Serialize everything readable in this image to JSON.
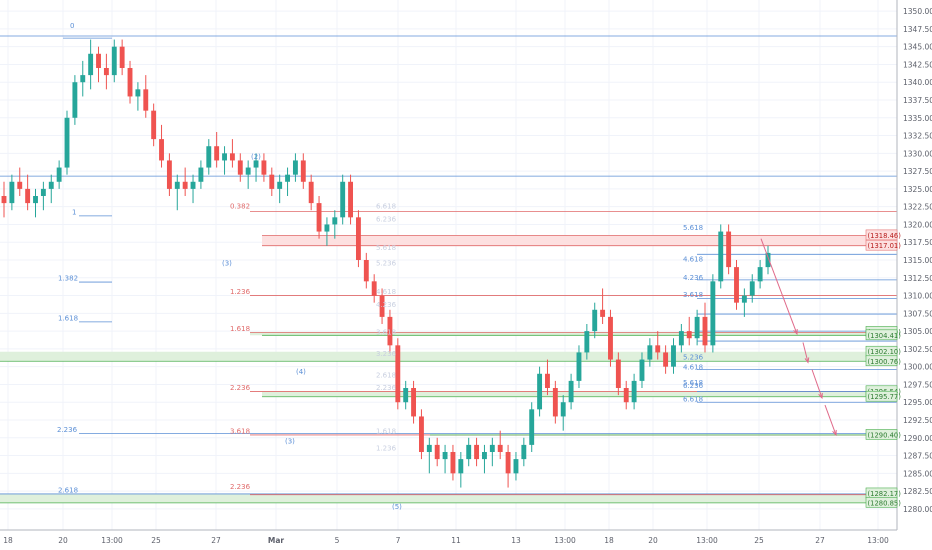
{
  "chart_data": {
    "type": "candlestick",
    "colors": {
      "up": "#26a69a",
      "down": "#ef5350",
      "fib_blue": "#5b8fd6",
      "fib_red": "#e06a6a",
      "fib_faint": "#c8cfe0",
      "support_green": "#4caf50",
      "resistance_red": "#e57373",
      "zone_green": "#dff0dc",
      "zone_red": "#fde0e0",
      "arrow": "#e06a8a",
      "grid": "#f0f3fa",
      "axis_text": "#5d606b"
    },
    "ylim": [
      1279,
      1351
    ],
    "y_ticks": [
      "1280.00",
      "1282.50",
      "1285.00",
      "1287.50",
      "1290.00",
      "1292.50",
      "1295.00",
      "1297.50",
      "1300.00",
      "1302.50",
      "1305.00",
      "1307.50",
      "1310.00",
      "1312.50",
      "1315.00",
      "1317.50",
      "1320.00",
      "1322.50",
      "1325.00",
      "1327.50",
      "1330.00",
      "1332.50",
      "1335.00",
      "1337.50",
      "1340.00",
      "1342.50",
      "1345.00",
      "1347.50",
      "1350.00"
    ],
    "x_ticks": [
      "18",
      "20",
      "13:00",
      "25",
      "27",
      "Mar",
      "5",
      "7",
      "11",
      "13",
      "13:00",
      "18",
      "20",
      "13:00",
      "25",
      "27",
      "13:00"
    ],
    "price_boxes": [
      {
        "label": "1318.46",
        "price": 1318.46,
        "kind": "red"
      },
      {
        "label": "1317.01",
        "price": 1317.01,
        "kind": "red"
      },
      {
        "label": "1304.89",
        "price": 1304.89,
        "kind": "green"
      },
      {
        "label": "1304.41",
        "price": 1304.41,
        "kind": "green"
      },
      {
        "label": "1302.10",
        "price": 1302.1,
        "kind": "green"
      },
      {
        "label": "1300.76",
        "price": 1300.76,
        "kind": "green"
      },
      {
        "label": "1296.54",
        "price": 1296.54,
        "kind": "green"
      },
      {
        "label": "1295.77",
        "price": 1295.77,
        "kind": "green"
      },
      {
        "label": "1290.40",
        "price": 1290.4,
        "kind": "green"
      },
      {
        "label": "1282.17",
        "price": 1282.17,
        "kind": "green"
      },
      {
        "label": "1280.85",
        "price": 1280.85,
        "kind": "green"
      }
    ],
    "fib_labels": [
      {
        "text": "0",
        "kind": "blue"
      },
      {
        "text": "1",
        "kind": "blue"
      },
      {
        "text": "1.382",
        "kind": "blue"
      },
      {
        "text": "1.618",
        "kind": "blue"
      },
      {
        "text": "2.236",
        "kind": "blue"
      },
      {
        "text": "2.618",
        "kind": "blue"
      },
      {
        "text": "0.382",
        "kind": "red"
      },
      {
        "text": "1.236",
        "kind": "red"
      },
      {
        "text": "1.618",
        "kind": "red"
      },
      {
        "text": "2.236",
        "kind": "red"
      },
      {
        "text": "3.618",
        "kind": "red"
      },
      {
        "text": "2.236",
        "kind": "red"
      },
      {
        "text": "6.618",
        "kind": "faint"
      },
      {
        "text": "6.236",
        "kind": "faint"
      },
      {
        "text": "5.618",
        "kind": "faint"
      },
      {
        "text": "5.236",
        "kind": "faint"
      },
      {
        "text": "4.618",
        "kind": "faint"
      },
      {
        "text": "4.236",
        "kind": "faint"
      },
      {
        "text": "3.618",
        "kind": "faint"
      },
      {
        "text": "3.236",
        "kind": "faint"
      },
      {
        "text": "2.618",
        "kind": "faint"
      },
      {
        "text": "2.236",
        "kind": "faint"
      },
      {
        "text": "1.618",
        "kind": "faint"
      },
      {
        "text": "1.236",
        "kind": "faint"
      },
      {
        "text": "5.618",
        "kind": "blue"
      },
      {
        "text": "4.618",
        "kind": "blue"
      },
      {
        "text": "4.236",
        "kind": "blue"
      },
      {
        "text": "3.618",
        "kind": "blue"
      },
      {
        "text": "5.236",
        "kind": "blue"
      },
      {
        "text": "5.618",
        "kind": "blue"
      },
      {
        "text": "4.618",
        "kind": "blue"
      },
      {
        "text": "6.236",
        "kind": "blue"
      },
      {
        "text": "6.618",
        "kind": "blue"
      }
    ],
    "wave_labels": [
      "(2)",
      "(3)",
      "(4)",
      "(3)",
      "(5)"
    ],
    "candles": [
      [
        1324,
        1326,
        1321,
        1323
      ],
      [
        1323,
        1327,
        1322,
        1326
      ],
      [
        1326,
        1328,
        1324,
        1325
      ],
      [
        1325,
        1327,
        1322,
        1323
      ],
      [
        1323,
        1325,
        1321,
        1324
      ],
      [
        1324,
        1326,
        1322,
        1325
      ],
      [
        1325,
        1327,
        1323,
        1326
      ],
      [
        1326,
        1329,
        1325,
        1328
      ],
      [
        1328,
        1336,
        1327,
        1335
      ],
      [
        1335,
        1341,
        1334,
        1340
      ],
      [
        1340,
        1343,
        1338,
        1341
      ],
      [
        1341,
        1346,
        1339,
        1344
      ],
      [
        1344,
        1345,
        1340,
        1342
      ],
      [
        1342,
        1344,
        1339,
        1341
      ],
      [
        1341,
        1346,
        1340,
        1345
      ],
      [
        1345,
        1346,
        1341,
        1342
      ],
      [
        1342,
        1343,
        1337,
        1338
      ],
      [
        1338,
        1340,
        1336,
        1339
      ],
      [
        1339,
        1341,
        1335,
        1336
      ],
      [
        1336,
        1337,
        1331,
        1332
      ],
      [
        1332,
        1334,
        1328,
        1329
      ],
      [
        1329,
        1330,
        1324,
        1325
      ],
      [
        1325,
        1327,
        1322,
        1326
      ],
      [
        1326,
        1328,
        1324,
        1325
      ],
      [
        1325,
        1327,
        1323,
        1326
      ],
      [
        1326,
        1329,
        1325,
        1328
      ],
      [
        1328,
        1332,
        1327,
        1331
      ],
      [
        1331,
        1333,
        1328,
        1329
      ],
      [
        1329,
        1331,
        1327,
        1330
      ],
      [
        1330,
        1332,
        1328,
        1329
      ],
      [
        1329,
        1330,
        1326,
        1327
      ],
      [
        1327,
        1329,
        1325,
        1328
      ],
      [
        1328,
        1330,
        1326,
        1329
      ],
      [
        1329,
        1330,
        1326,
        1327
      ],
      [
        1327,
        1328,
        1324,
        1325
      ],
      [
        1325,
        1327,
        1323,
        1326
      ],
      [
        1326,
        1328,
        1324,
        1327
      ],
      [
        1327,
        1330,
        1326,
        1329
      ],
      [
        1329,
        1330,
        1325,
        1326
      ],
      [
        1326,
        1327,
        1322,
        1323
      ],
      [
        1323,
        1324,
        1318,
        1319
      ],
      [
        1319,
        1321,
        1317,
        1320
      ],
      [
        1320,
        1322,
        1318,
        1321
      ],
      [
        1321,
        1327,
        1320,
        1326
      ],
      [
        1326,
        1327,
        1320,
        1321
      ],
      [
        1321,
        1322,
        1314,
        1315
      ],
      [
        1315,
        1316,
        1311,
        1312
      ],
      [
        1312,
        1313,
        1309,
        1310
      ],
      [
        1310,
        1311,
        1306,
        1307
      ],
      [
        1307,
        1308,
        1302,
        1303
      ],
      [
        1303,
        1304,
        1294,
        1295
      ],
      [
        1295,
        1298,
        1294,
        1297
      ],
      [
        1297,
        1298,
        1292,
        1293
      ],
      [
        1293,
        1294,
        1287,
        1288
      ],
      [
        1288,
        1290,
        1285,
        1289
      ],
      [
        1289,
        1290,
        1286,
        1287
      ],
      [
        1287,
        1289,
        1285,
        1288
      ],
      [
        1288,
        1289,
        1284,
        1285
      ],
      [
        1285,
        1288,
        1283,
        1287
      ],
      [
        1287,
        1290,
        1286,
        1289
      ],
      [
        1289,
        1290,
        1286,
        1287
      ],
      [
        1287,
        1289,
        1285,
        1288
      ],
      [
        1288,
        1290,
        1286,
        1289
      ],
      [
        1289,
        1291,
        1287,
        1288
      ],
      [
        1288,
        1289,
        1283,
        1285
      ],
      [
        1285,
        1288,
        1284,
        1287
      ],
      [
        1287,
        1290,
        1286,
        1289
      ],
      [
        1289,
        1295,
        1288,
        1294
      ],
      [
        1294,
        1300,
        1293,
        1299
      ],
      [
        1299,
        1301,
        1296,
        1297
      ],
      [
        1297,
        1298,
        1292,
        1293
      ],
      [
        1293,
        1296,
        1291,
        1295
      ],
      [
        1295,
        1299,
        1294,
        1298
      ],
      [
        1298,
        1303,
        1297,
        1302
      ],
      [
        1302,
        1306,
        1301,
        1305
      ],
      [
        1305,
        1309,
        1304,
        1308
      ],
      [
        1308,
        1311,
        1306,
        1307
      ],
      [
        1307,
        1308,
        1300,
        1301
      ],
      [
        1301,
        1302,
        1296,
        1297
      ],
      [
        1297,
        1298,
        1294,
        1295
      ],
      [
        1295,
        1299,
        1294,
        1298
      ],
      [
        1298,
        1302,
        1297,
        1301
      ],
      [
        1301,
        1304,
        1300,
        1303
      ],
      [
        1303,
        1305,
        1301,
        1302
      ],
      [
        1302,
        1303,
        1299,
        1300
      ],
      [
        1300,
        1304,
        1299,
        1303
      ],
      [
        1303,
        1306,
        1302,
        1305
      ],
      [
        1305,
        1307,
        1303,
        1304
      ],
      [
        1304,
        1308,
        1303,
        1307
      ],
      [
        1307,
        1309,
        1302,
        1303
      ],
      [
        1303,
        1313,
        1302,
        1312
      ],
      [
        1312,
        1320,
        1311,
        1319
      ],
      [
        1319,
        1320,
        1313,
        1314
      ],
      [
        1314,
        1315,
        1308,
        1309
      ],
      [
        1309,
        1311,
        1307,
        1310
      ],
      [
        1310,
        1313,
        1309,
        1312
      ],
      [
        1312,
        1315,
        1311,
        1314
      ],
      [
        1314,
        1317,
        1313,
        1316
      ]
    ]
  }
}
